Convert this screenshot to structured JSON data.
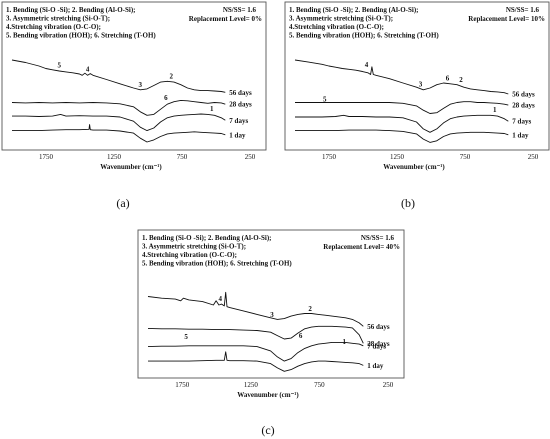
{
  "chart_data": [
    {
      "type": "line",
      "caption": "(a)",
      "legend_lines": [
        "1. Bending (Si-O -Si); 2. Bending (Al-O-Si);",
        "3. Asymmetric stretching (Si-O-T);",
        "4.Stretching vibration (O-C-O);",
        "5. Bending vibration (HOH); 6. Stretching (T-OH)"
      ],
      "ratio_text": "NS/SS= 1.6",
      "replacement_text": "Replacement Level= 0%",
      "xlabel": "Wavenumber (cm⁻¹)",
      "xticks": [
        "1750",
        "1250",
        "750",
        "250"
      ],
      "x_range": [
        2000,
        400
      ],
      "series": [
        {
          "name": "56 days",
          "x": [
            2000,
            1900,
            1800,
            1750,
            1700,
            1650,
            1600,
            1550,
            1500,
            1480,
            1460,
            1440,
            1420,
            1400,
            1300,
            1200,
            1100,
            1050,
            1000,
            950,
            900,
            850,
            800,
            750,
            700,
            650,
            600,
            550,
            500,
            450,
            420
          ],
          "y": [
            0.0,
            0.06,
            0.14,
            0.2,
            0.23,
            0.26,
            0.28,
            0.3,
            0.33,
            0.36,
            0.31,
            0.36,
            0.32,
            0.36,
            0.46,
            0.56,
            0.66,
            0.7,
            0.68,
            0.6,
            0.52,
            0.5,
            0.52,
            0.58,
            0.66,
            0.7,
            0.72,
            0.72,
            0.73,
            0.74,
            0.76
          ]
        },
        {
          "name": "28 days",
          "x": [
            2000,
            1900,
            1800,
            1700,
            1600,
            1500,
            1400,
            1300,
            1200,
            1100,
            1050,
            1000,
            950,
            900,
            850,
            800,
            750,
            700,
            650,
            600,
            550,
            500,
            450,
            420
          ],
          "y": [
            1.0,
            1.01,
            1.0,
            1.01,
            1.0,
            1.01,
            1.0,
            1.01,
            1.03,
            1.1,
            1.22,
            1.3,
            1.28,
            1.16,
            1.04,
            0.98,
            0.95,
            0.96,
            0.98,
            1.0,
            1.02,
            1.0,
            1.01,
            1.04
          ]
        },
        {
          "name": "7 days",
          "x": [
            2000,
            1900,
            1800,
            1700,
            1640,
            1600,
            1500,
            1400,
            1300,
            1200,
            1100,
            1050,
            1000,
            950,
            900,
            850,
            800,
            750,
            700,
            650,
            600,
            550,
            500,
            450,
            420
          ],
          "y": [
            1.32,
            1.32,
            1.33,
            1.32,
            1.28,
            1.32,
            1.31,
            1.32,
            1.32,
            1.34,
            1.44,
            1.58,
            1.66,
            1.6,
            1.46,
            1.36,
            1.32,
            1.3,
            1.29,
            1.28,
            1.27,
            1.28,
            1.3,
            1.36,
            1.42
          ]
        },
        {
          "name": "1 day",
          "x": [
            2000,
            1900,
            1800,
            1700,
            1600,
            1500,
            1430,
            1425,
            1420,
            1400,
            1300,
            1200,
            1100,
            1050,
            1000,
            950,
            900,
            850,
            800,
            750,
            700,
            650,
            600,
            550,
            500,
            450,
            420
          ],
          "y": [
            1.66,
            1.66,
            1.66,
            1.65,
            1.64,
            1.64,
            1.63,
            1.52,
            1.64,
            1.65,
            1.65,
            1.67,
            1.72,
            1.84,
            1.93,
            1.88,
            1.8,
            1.74,
            1.72,
            1.71,
            1.7,
            1.69,
            1.7,
            1.71,
            1.72,
            1.73,
            1.76
          ]
        }
      ],
      "peak_labels": [
        {
          "text": "5",
          "x": 1650,
          "y": 0.18
        },
        {
          "text": "4",
          "x": 1440,
          "y": 0.27
        },
        {
          "text": "3",
          "x": 1050,
          "y": 0.64
        },
        {
          "text": "2",
          "x": 820,
          "y": 0.44
        },
        {
          "text": "6",
          "x": 860,
          "y": 0.94
        },
        {
          "text": "1",
          "x": 520,
          "y": 1.2
        }
      ]
    },
    {
      "type": "line",
      "caption": "(b)",
      "legend_lines": [
        "1. Bending (Si-O -Si); 2. Bending (Al-O-Si);",
        "3. Asymmetric stretching (Si-O-T);",
        "4.Stretching vibration (O-C-O);",
        "5. Bending vibration (HOH); 6. Stretching (T-OH)"
      ],
      "ratio_text": "NS/SS= 1.6",
      "replacement_text": "Replacement Level= 10%",
      "xlabel": "Wavenumber (cm⁻¹)",
      "xticks": [
        "1750",
        "1250",
        "750",
        "250"
      ],
      "x_range": [
        2000,
        400
      ],
      "series": [
        {
          "name": "56 days",
          "x": [
            2000,
            1900,
            1800,
            1750,
            1700,
            1650,
            1600,
            1550,
            1500,
            1460,
            1440,
            1430,
            1420,
            1400,
            1300,
            1200,
            1100,
            1050,
            1000,
            950,
            900,
            850,
            800,
            750,
            700,
            650,
            600,
            550,
            500,
            450,
            420
          ],
          "y": [
            0.0,
            0.05,
            0.1,
            0.14,
            0.17,
            0.2,
            0.22,
            0.24,
            0.27,
            0.3,
            0.34,
            0.16,
            0.34,
            0.36,
            0.44,
            0.54,
            0.64,
            0.7,
            0.66,
            0.58,
            0.54,
            0.56,
            0.58,
            0.64,
            0.68,
            0.7,
            0.72,
            0.74,
            0.75,
            0.77,
            0.8
          ]
        },
        {
          "name": "28 days",
          "x": [
            2000,
            1900,
            1800,
            1700,
            1600,
            1500,
            1400,
            1300,
            1200,
            1100,
            1050,
            1000,
            950,
            900,
            850,
            800,
            750,
            700,
            650,
            600,
            550,
            500,
            450,
            420
          ],
          "y": [
            1.0,
            1.0,
            1.0,
            1.0,
            1.0,
            1.0,
            1.0,
            1.0,
            1.02,
            1.08,
            1.18,
            1.26,
            1.24,
            1.14,
            1.04,
            1.0,
            0.98,
            0.98,
            1.0,
            1.0,
            1.01,
            1.02,
            1.04,
            1.06
          ]
        },
        {
          "name": "7 days",
          "x": [
            2000,
            1900,
            1800,
            1700,
            1640,
            1600,
            1500,
            1400,
            1300,
            1200,
            1100,
            1050,
            1000,
            950,
            900,
            850,
            800,
            750,
            700,
            650,
            600,
            550,
            500,
            450,
            420
          ],
          "y": [
            1.34,
            1.34,
            1.34,
            1.33,
            1.3,
            1.33,
            1.33,
            1.34,
            1.34,
            1.36,
            1.46,
            1.62,
            1.7,
            1.62,
            1.48,
            1.38,
            1.34,
            1.32,
            1.31,
            1.3,
            1.3,
            1.3,
            1.32,
            1.38,
            1.44
          ]
        },
        {
          "name": "1 day",
          "x": [
            2000,
            1900,
            1800,
            1700,
            1600,
            1500,
            1400,
            1300,
            1200,
            1100,
            1050,
            1000,
            950,
            900,
            850,
            800,
            750,
            700,
            650,
            600,
            550,
            500,
            450,
            420
          ],
          "y": [
            1.66,
            1.66,
            1.66,
            1.66,
            1.65,
            1.65,
            1.65,
            1.66,
            1.68,
            1.74,
            1.86,
            1.94,
            1.9,
            1.8,
            1.74,
            1.72,
            1.71,
            1.7,
            1.7,
            1.7,
            1.71,
            1.72,
            1.73,
            1.76
          ]
        }
      ],
      "peak_labels": [
        {
          "text": "4",
          "x": 1470,
          "y": 0.16
        },
        {
          "text": "5",
          "x": 1780,
          "y": 0.98
        },
        {
          "text": "3",
          "x": 1070,
          "y": 0.62
        },
        {
          "text": "6",
          "x": 870,
          "y": 0.48
        },
        {
          "text": "2",
          "x": 770,
          "y": 0.52
        },
        {
          "text": "1",
          "x": 520,
          "y": 1.22
        }
      ]
    },
    {
      "type": "line",
      "caption": "(c)",
      "legend_lines": [
        "1. Bending (Si-O -Si); 2. Bending (Al-O-Si);",
        "3. Asymmetric stretching (Si-O-T);",
        "4.Stretching vibration (O-C-O);",
        "5. Bending vibration (HOH); 6. Stretching (T-OH)"
      ],
      "ratio_text": "NS/SS= 1.6",
      "replacement_text": "Replacement Level= 40%",
      "xlabel": "Wavenumber (cm⁻¹)",
      "xticks": [
        "1750",
        "1250",
        "750",
        "250"
      ],
      "x_range": [
        2000,
        400
      ],
      "series": [
        {
          "name": "56 days",
          "x": [
            2000,
            1900,
            1800,
            1760,
            1740,
            1700,
            1600,
            1520,
            1500,
            1480,
            1460,
            1440,
            1430,
            1420,
            1400,
            1300,
            1200,
            1100,
            1050,
            1000,
            950,
            900,
            850,
            800,
            750,
            700,
            650,
            600,
            550,
            500,
            450,
            420
          ],
          "y": [
            0.2,
            0.24,
            0.26,
            0.3,
            0.24,
            0.28,
            0.32,
            0.4,
            0.3,
            0.4,
            0.38,
            0.42,
            0.1,
            0.44,
            0.46,
            0.54,
            0.62,
            0.7,
            0.74,
            0.72,
            0.66,
            0.62,
            0.6,
            0.6,
            0.62,
            0.64,
            0.66,
            0.68,
            0.7,
            0.74,
            0.82,
            0.9
          ]
        },
        {
          "name": "28 days",
          "x": [
            2000,
            1900,
            1800,
            1700,
            1600,
            1500,
            1400,
            1300,
            1200,
            1100,
            1050,
            1000,
            950,
            900,
            850,
            800,
            750,
            700,
            650,
            600,
            550,
            500,
            450,
            420
          ],
          "y": [
            0.95,
            0.96,
            0.96,
            0.97,
            0.97,
            0.98,
            0.98,
            0.99,
            1.0,
            1.04,
            1.12,
            1.2,
            1.18,
            1.06,
            0.96,
            0.92,
            0.9,
            0.9,
            0.9,
            0.91,
            0.92,
            0.94,
            1.1,
            1.3
          ]
        },
        {
          "name": "7 days",
          "x": [
            2000,
            1900,
            1800,
            1700,
            1600,
            1500,
            1400,
            1300,
            1200,
            1100,
            1050,
            1000,
            950,
            900,
            850,
            800,
            750,
            700,
            650,
            600,
            550,
            500,
            450,
            420
          ],
          "y": [
            1.38,
            1.37,
            1.37,
            1.36,
            1.36,
            1.36,
            1.36,
            1.36,
            1.38,
            1.48,
            1.62,
            1.72,
            1.66,
            1.52,
            1.42,
            1.36,
            1.32,
            1.3,
            1.28,
            1.28,
            1.28,
            1.3,
            1.32,
            1.36
          ]
        },
        {
          "name": "1 day",
          "x": [
            2000,
            1900,
            1800,
            1700,
            1600,
            1500,
            1440,
            1430,
            1420,
            1400,
            1300,
            1200,
            1100,
            1050,
            1000,
            950,
            900,
            850,
            800,
            750,
            700,
            650,
            600,
            550,
            500,
            450,
            420
          ],
          "y": [
            1.72,
            1.72,
            1.72,
            1.72,
            1.71,
            1.7,
            1.7,
            1.5,
            1.7,
            1.71,
            1.71,
            1.72,
            1.78,
            1.88,
            1.96,
            1.92,
            1.84,
            1.78,
            1.74,
            1.72,
            1.72,
            1.73,
            1.74,
            1.75,
            1.76,
            1.78,
            1.82
          ]
        }
      ],
      "peak_labels": [
        {
          "text": "4",
          "x": 1470,
          "y": 0.3
        },
        {
          "text": "5",
          "x": 1720,
          "y": 1.2
        },
        {
          "text": "3",
          "x": 1090,
          "y": 0.68
        },
        {
          "text": "2",
          "x": 810,
          "y": 0.54
        },
        {
          "text": "6",
          "x": 880,
          "y": 1.18
        },
        {
          "text": "1",
          "x": 560,
          "y": 1.32
        }
      ]
    }
  ]
}
